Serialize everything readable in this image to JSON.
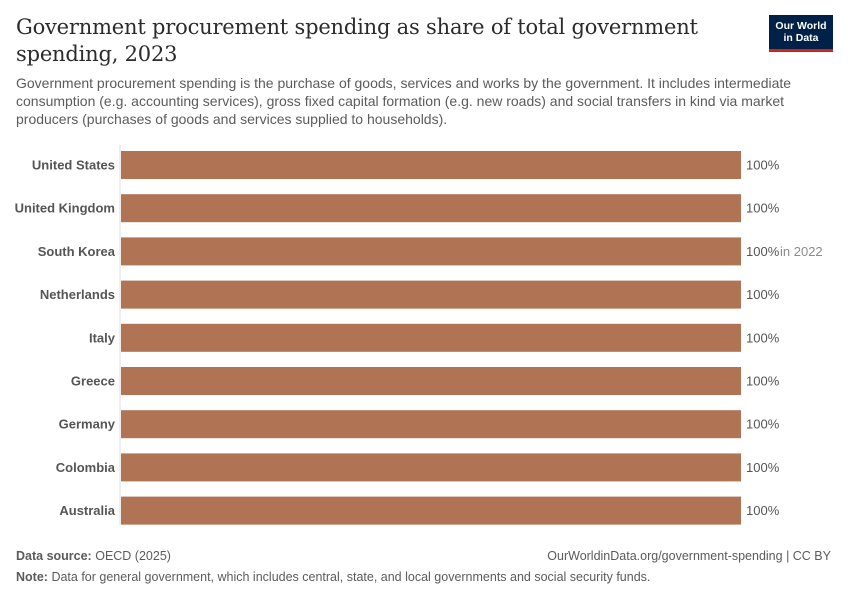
{
  "header": {
    "title": "Government procurement spending as share of total government spending, 2023",
    "subtitle": "Government procurement spending is the purchase of goods, services and works by the government. It includes intermediate consumption (e.g. accounting services), gross fixed capital formation (e.g. new roads) and social transfers in kind via market producers (purchases of goods and services supplied to households).",
    "logo_line1": "Our World",
    "logo_line2": "in Data"
  },
  "footer": {
    "source_label": "Data source:",
    "source_value": "OECD (2025)",
    "url": "OurWorldinData.org/government-spending | CC BY",
    "note_label": "Note:",
    "note_value": "Data for general government, which includes central, state, and local governments and social security funds."
  },
  "colors": {
    "bar": "#b07353",
    "axis": "#dddddd",
    "brand": "#002147",
    "brand_accent": "#ce261e"
  },
  "chart_data": {
    "type": "bar",
    "orientation": "horizontal",
    "title": "Government procurement spending as share of total government spending, 2023",
    "unit": "%",
    "xlim": [
      0,
      100
    ],
    "categories": [
      "United States",
      "United Kingdom",
      "South Korea",
      "Netherlands",
      "Italy",
      "Greece",
      "Germany",
      "Colombia",
      "Australia"
    ],
    "values": [
      100,
      100,
      100,
      100,
      100,
      100,
      100,
      100,
      100
    ],
    "value_labels": [
      "100%",
      "100%",
      "100%",
      "100%",
      "100%",
      "100%",
      "100%",
      "100%",
      "100%"
    ],
    "annotations": [
      null,
      null,
      "in 2022",
      null,
      null,
      null,
      null,
      null,
      null
    ]
  }
}
